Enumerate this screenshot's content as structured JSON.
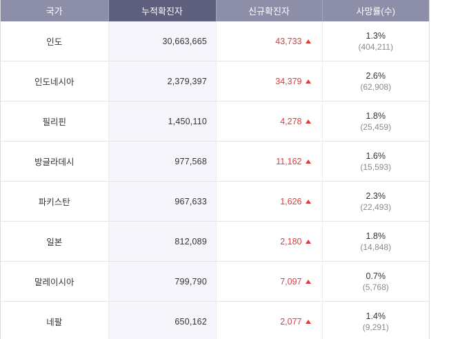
{
  "table": {
    "headers": [
      "국가",
      "누적확진자",
      "신규확진자",
      "사망률(수)"
    ],
    "rows": [
      {
        "country": "인도",
        "total": "30,663,665",
        "new": "43,733",
        "rate": "1.3%",
        "deaths": "(404,211)"
      },
      {
        "country": "인도네시아",
        "total": "2,379,397",
        "new": "34,379",
        "rate": "2.6%",
        "deaths": "(62,908)"
      },
      {
        "country": "필리핀",
        "total": "1,450,110",
        "new": "4,278",
        "rate": "1.8%",
        "deaths": "(25,459)"
      },
      {
        "country": "방글라데시",
        "total": "977,568",
        "new": "11,162",
        "rate": "1.6%",
        "deaths": "(15,593)"
      },
      {
        "country": "파키스탄",
        "total": "967,633",
        "new": "1,626",
        "rate": "2.3%",
        "deaths": "(22,493)"
      },
      {
        "country": "일본",
        "total": "812,089",
        "new": "2,180",
        "rate": "1.8%",
        "deaths": "(14,848)"
      },
      {
        "country": "말레이시아",
        "total": "799,790",
        "new": "7,097",
        "rate": "0.7%",
        "deaths": "(5,768)"
      },
      {
        "country": "네팔",
        "total": "650,162",
        "new": "2,077",
        "rate": "1.4%",
        "deaths": "(9,291)"
      }
    ]
  },
  "colors": {
    "header_bg": "#8d8fa8",
    "header_active_bg": "#5d5f7c",
    "increase_red": "#e03a3a",
    "total_column_bg": "#f5f5fb"
  },
  "icons": {
    "increase": "triangle-up-icon"
  }
}
